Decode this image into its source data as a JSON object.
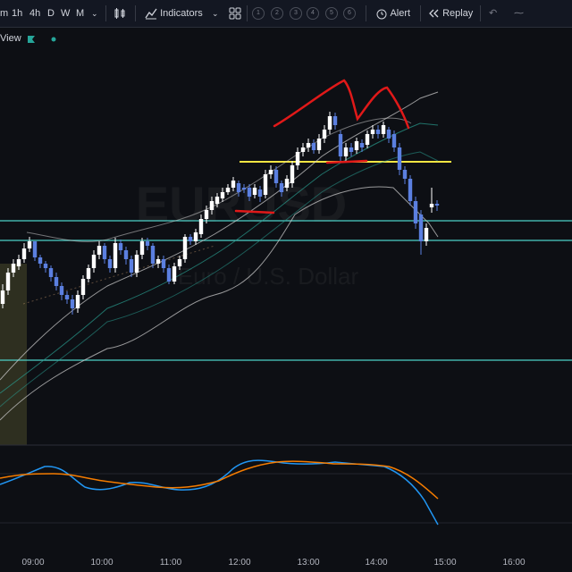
{
  "toolbar": {
    "intervals": [
      "m",
      "1h",
      "4h",
      "D",
      "W",
      "M"
    ],
    "interval_dropdown_icon": "chevron-down-icon",
    "chart_type_icon": "candles-icon",
    "indicators_icon": "indicators-icon",
    "indicators_label": "Indicators",
    "templates_icon": "templates-grid-icon",
    "layout_numbers": [
      "1",
      "2",
      "3",
      "4",
      "5",
      "6"
    ],
    "alert_icon": "alarm-clock-icon",
    "alert_label": "Alert",
    "replay_icon": "rewind-icon",
    "replay_label": "Replay",
    "undo_icon": "undo-icon"
  },
  "legend": {
    "label": "View",
    "flag_icon": "flag-icon",
    "dot_icon": "dot-icon",
    "accent_color": "#26a69a"
  },
  "watermark": {
    "symbol": "EURUSD",
    "description": "Euro / U.S. Dollar"
  },
  "colors": {
    "background": "#0d0f14",
    "up_candle": "#ffffff",
    "down_candle": "#5b7fe0",
    "horizontal_lines": "#4dd0c8",
    "yellow_line": "#f5e642",
    "red_drawing": "#e01919",
    "stoch_k": "#2196f3",
    "stoch_d": "#f57c00",
    "session_highlight": "#4a4a2a"
  },
  "time_axis": {
    "labels": [
      "09:00",
      "10:00",
      "11:00",
      "12:00",
      "13:00",
      "14:00",
      "15:00",
      "16:00"
    ]
  }
}
